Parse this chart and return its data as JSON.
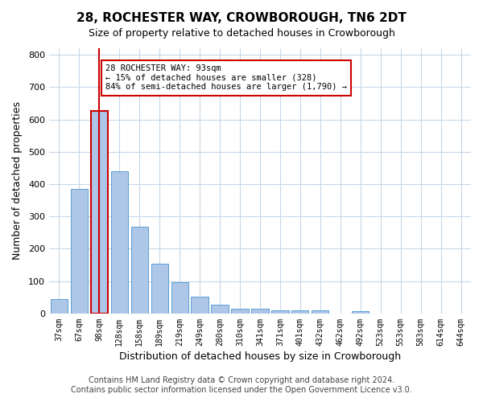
{
  "title": "28, ROCHESTER WAY, CROWBOROUGH, TN6 2DT",
  "subtitle": "Size of property relative to detached houses in Crowborough",
  "xlabel": "Distribution of detached houses by size in Crowborough",
  "ylabel": "Number of detached properties",
  "categories": [
    "37sqm",
    "67sqm",
    "98sqm",
    "128sqm",
    "158sqm",
    "189sqm",
    "219sqm",
    "249sqm",
    "280sqm",
    "310sqm",
    "341sqm",
    "371sqm",
    "401sqm",
    "432sqm",
    "462sqm",
    "492sqm",
    "523sqm",
    "553sqm",
    "583sqm",
    "614sqm",
    "644sqm"
  ],
  "values": [
    45,
    385,
    625,
    440,
    268,
    155,
    97,
    52,
    27,
    15,
    15,
    10,
    10,
    10,
    0,
    8,
    0,
    0,
    0,
    0,
    0
  ],
  "bar_color": "#aec6e8",
  "bar_edge_color": "#5a9fd4",
  "highlight_bar_index": 2,
  "highlight_bar_color": "#aec6e8",
  "highlight_bar_edge_color": "#cc0000",
  "highlight_line_color": "#cc0000",
  "annotation_text": "28 ROCHESTER WAY: 93sqm\n← 15% of detached houses are smaller (328)\n84% of semi-detached houses are larger (1,790) →",
  "annotation_box_color": "#ffffff",
  "annotation_box_edge_color": "#cc0000",
  "ylim": [
    0,
    820
  ],
  "yticks": [
    0,
    100,
    200,
    300,
    400,
    500,
    600,
    700,
    800
  ],
  "footer_line1": "Contains HM Land Registry data © Crown copyright and database right 2024.",
  "footer_line2": "Contains public sector information licensed under the Open Government Licence v3.0.",
  "bg_color": "#ffffff",
  "grid_color": "#c8d8e8",
  "title_fontsize": 11,
  "subtitle_fontsize": 9,
  "xlabel_fontsize": 9,
  "ylabel_fontsize": 9,
  "footer_fontsize": 7
}
